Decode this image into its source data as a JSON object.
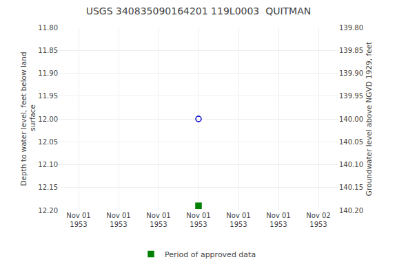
{
  "chart_data": {
    "type": "scatter",
    "title": "USGS 340835090164201 119L0003  QUITMAN",
    "y_label": "Depth to water level, feet below land\n surface",
    "y2_label": "Groundwater level above NGVD 1929, feet",
    "categories": [
      "Nov 01\n1953",
      "Nov 01\n1953",
      "Nov 01\n1953",
      "Nov 01\n1953",
      "Nov 01\n1953",
      "Nov 01\n1953",
      "Nov 02\n1953"
    ],
    "series": [
      {
        "color": "#0000cc",
        "marker": "circle-open",
        "values": [
          null,
          null,
          null,
          12.0,
          null,
          null,
          null
        ]
      },
      {
        "name": "Period of approved data",
        "color": "#008000",
        "marker": "square",
        "values": [
          null,
          null,
          null,
          12.19,
          null,
          null,
          null
        ]
      }
    ],
    "ylim": [
      12.2,
      11.8
    ],
    "yticks": [
      {
        "value": 11.8,
        "label": "11.80"
      },
      11.85,
      {
        "value": 11.9,
        "label": "11.90"
      },
      11.95,
      {
        "value": 12.0,
        "label": "12.00"
      },
      12.05,
      {
        "value": 12.1,
        "label": "12.10"
      },
      12.15,
      {
        "value": 12.2,
        "label": "12.20"
      }
    ],
    "y2lim": [
      140.2,
      139.8
    ],
    "y2ticks": [
      {
        "value": 140.2,
        "label": "140.20"
      },
      140.15,
      {
        "value": 140.1,
        "label": "140.10"
      },
      140.05,
      {
        "value": 140.0,
        "label": "140.00"
      },
      139.95,
      {
        "value": 139.9,
        "label": "139.90"
      },
      139.85,
      {
        "value": 139.8,
        "label": "139.80"
      }
    ],
    "grid": true,
    "legend": "bottom"
  }
}
